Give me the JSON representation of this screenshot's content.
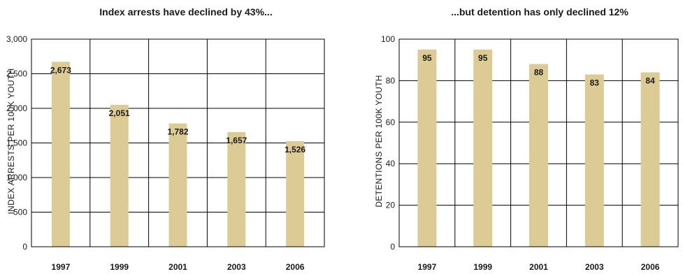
{
  "chart_data": [
    {
      "type": "bar",
      "title": "Index arrests have declined by 43%...",
      "xlabel": "",
      "ylabel": "INDEX ARRESTS PER 100K YOUTH",
      "categories": [
        "1997",
        "1999",
        "2001",
        "2003",
        "2006"
      ],
      "values": [
        2673,
        2051,
        1782,
        1657,
        1526
      ],
      "value_labels": [
        "2,673",
        "2,051",
        "1,782",
        "1,657",
        "1,526"
      ],
      "yticks": [
        0,
        500,
        1000,
        1500,
        2000,
        2500,
        3000
      ],
      "ytick_labels": [
        "0",
        "500",
        "1,000",
        "1,500",
        "2,000",
        "2,500",
        "3,000"
      ],
      "ylim": [
        0,
        3000
      ],
      "grid": true,
      "bar_color": "#dccb95"
    },
    {
      "type": "bar",
      "title": "...but detention has only declined 12%",
      "xlabel": "",
      "ylabel": "DETENTIONS PER 100K YOUTH",
      "categories": [
        "1997",
        "1999",
        "2001",
        "2003",
        "2006"
      ],
      "values": [
        95,
        95,
        88,
        83,
        84
      ],
      "value_labels": [
        "95",
        "95",
        "88",
        "83",
        "84"
      ],
      "yticks": [
        0,
        20,
        40,
        60,
        80,
        100
      ],
      "ytick_labels": [
        "0",
        "20",
        "40",
        "60",
        "80",
        "100"
      ],
      "ylim": [
        0,
        100
      ],
      "grid": true,
      "bar_color": "#dccb95"
    }
  ]
}
